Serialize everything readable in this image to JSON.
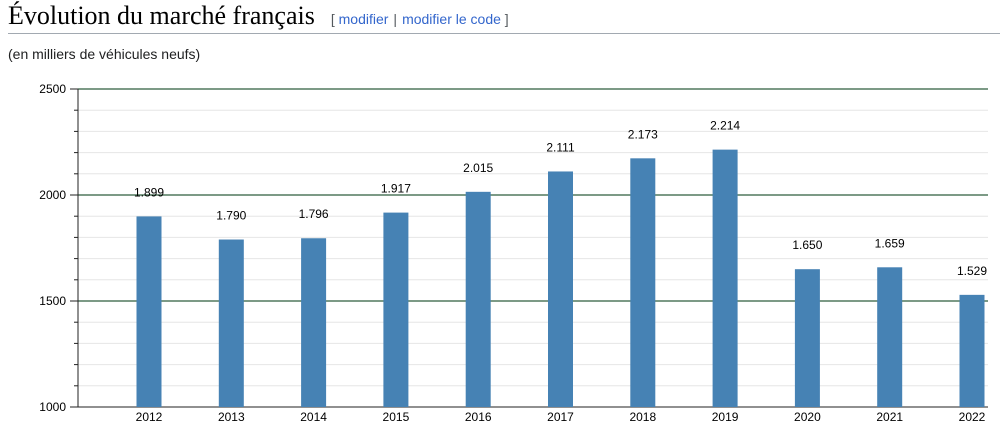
{
  "section": {
    "title": "Évolution du marché français",
    "edit_open": "[",
    "edit_label": "modifier",
    "edit_sep": "|",
    "edit_code_label": "modifier le code",
    "edit_close": "]"
  },
  "subtitle": "(en milliers de véhicules neufs)",
  "colors": {
    "bar": "#4682b4",
    "major_grid": "#2f5e3f",
    "minor_grid": "#e6e6e6",
    "axis": "#222222"
  },
  "chart_data": {
    "type": "bar",
    "categories": [
      "2012",
      "2013",
      "2014",
      "2015",
      "2016",
      "2017",
      "2018",
      "2019",
      "2020",
      "2021",
      "2022"
    ],
    "values": [
      1899,
      1790,
      1796,
      1917,
      2015,
      2111,
      2173,
      2214,
      1650,
      1659,
      1529
    ],
    "value_labels": [
      "1.899",
      "1.790",
      "1.796",
      "1.917",
      "2.015",
      "2.111",
      "2.173",
      "2.214",
      "1.650",
      "1.659",
      "1.529"
    ],
    "ylim": [
      1000,
      2500
    ],
    "yticks": [
      1000,
      1500,
      2000,
      2500
    ],
    "ytick_labels": [
      "1000",
      "1500",
      "2000",
      "2500"
    ],
    "minor_step": 100,
    "grid": true
  }
}
